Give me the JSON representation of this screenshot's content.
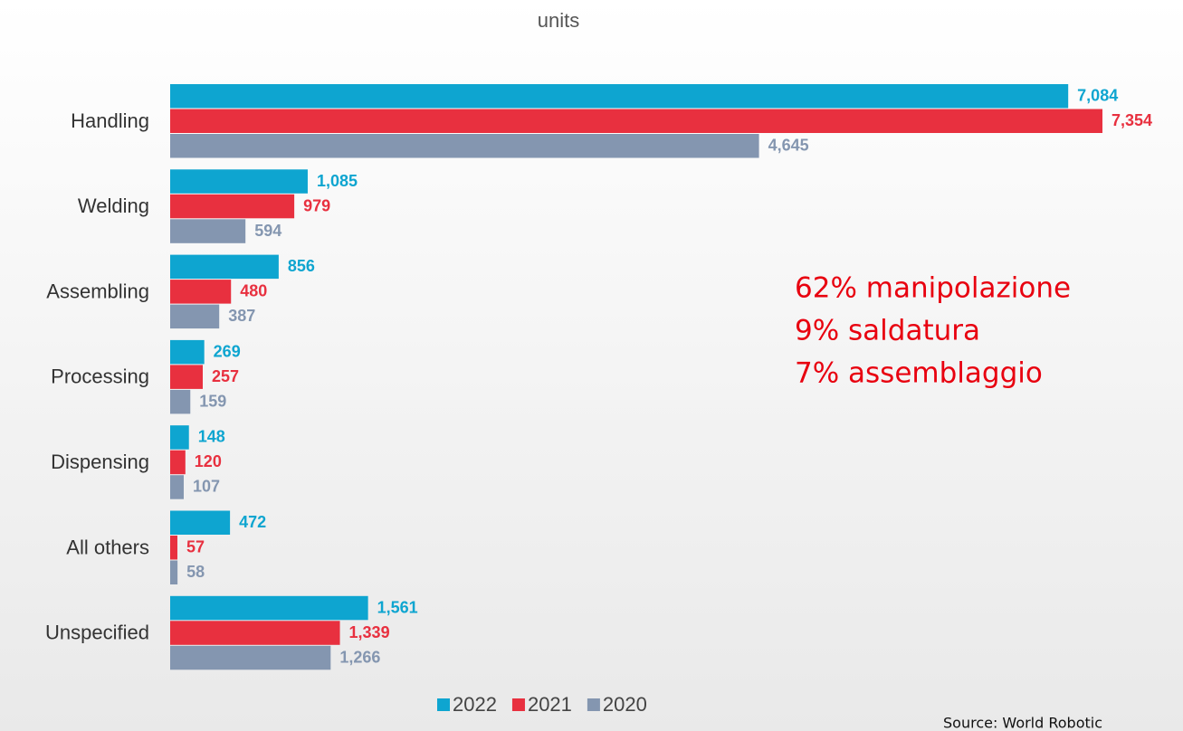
{
  "chart_data": {
    "type": "hbar",
    "title": "units",
    "categories": [
      "Handling",
      "Welding",
      "Assembling",
      "Processing",
      "Dispensing",
      "All others",
      "Unspecified"
    ],
    "series": [
      {
        "name": "2022",
        "color": "#0ea5d0",
        "values": [
          7084,
          1085,
          856,
          269,
          148,
          472,
          1561
        ],
        "value_labels": [
          "7,084",
          "1,085",
          "856",
          "269",
          "148",
          "472",
          "1,561"
        ]
      },
      {
        "name": "2021",
        "color": "#e8303f",
        "values": [
          7354,
          979,
          480,
          257,
          120,
          57,
          1339
        ],
        "value_labels": [
          "7,354",
          "979",
          "480",
          "257",
          "120",
          "57",
          "1,339"
        ]
      },
      {
        "name": "2020",
        "color": "#8496b0",
        "values": [
          4645,
          594,
          387,
          159,
          107,
          58,
          1266
        ],
        "value_labels": [
          "4,645",
          "594",
          "387",
          "159",
          "107",
          "58",
          "1,266"
        ]
      }
    ],
    "annotations": [
      "62% manipolazione",
      "9% saldatura",
      "7% assemblaggio"
    ],
    "source": "Source: World Robotic"
  }
}
